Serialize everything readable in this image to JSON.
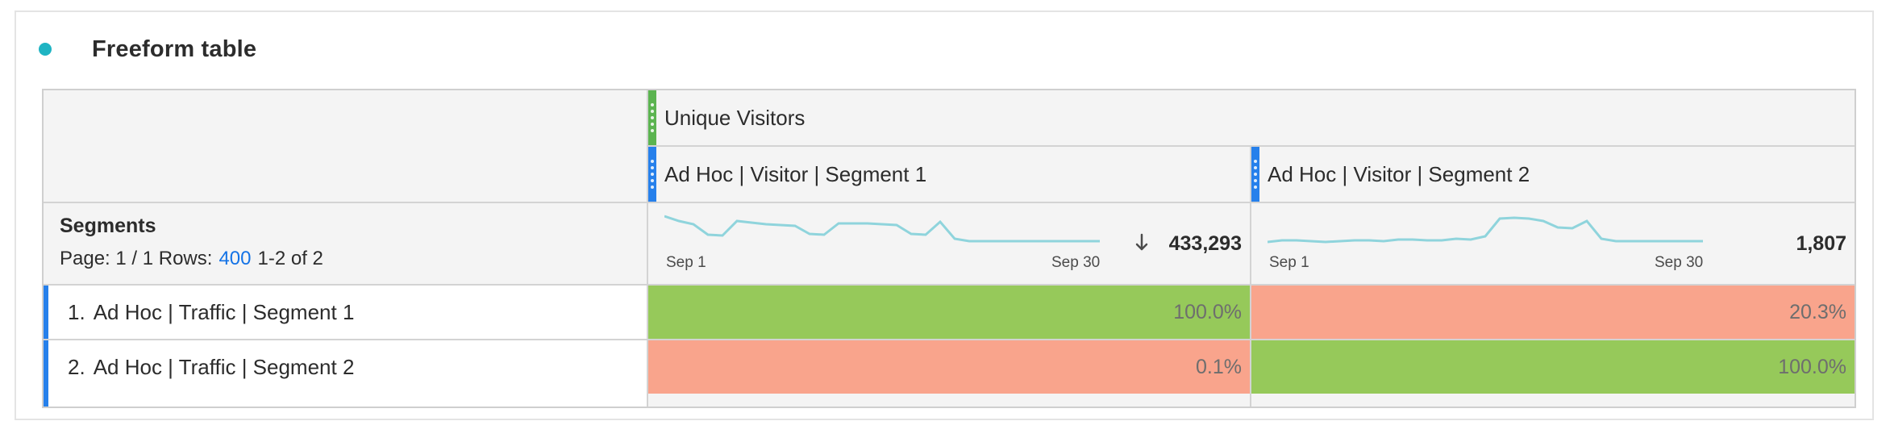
{
  "panel": {
    "title": "Freeform table",
    "dot_color": "#1fb4c3"
  },
  "table": {
    "metric": {
      "label": "Unique Visitors",
      "color": "#5bb450"
    },
    "columns": [
      {
        "label": "Ad Hoc | Visitor | Segment 1",
        "total": "433,293",
        "sparkline_start": "Sep 1",
        "sparkline_end": "Sep 30",
        "sorted": "descending"
      },
      {
        "label": "Ad Hoc | Visitor | Segment 2",
        "total": "1,807",
        "sparkline_start": "Sep 1",
        "sparkline_end": "Sep 30"
      }
    ],
    "dimension": {
      "label": "Segments",
      "page_text": "Page: 1 / 1 Rows:",
      "rows_value": "400",
      "range_text": "1-2 of 2"
    },
    "rows": [
      {
        "index": "1.",
        "label": "Ad Hoc | Traffic | Segment 1",
        "values": [
          "100.0%",
          "20.3%"
        ]
      },
      {
        "index": "2.",
        "label": "Ad Hoc | Traffic | Segment 2",
        "values": [
          "0.1%",
          "100.0%"
        ]
      }
    ],
    "colors": {
      "high": "#96c95a",
      "low": "#f9a48c",
      "sparkline": "#8fd4dc",
      "accent": "#2680eb",
      "link": "#1473e6"
    }
  }
}
